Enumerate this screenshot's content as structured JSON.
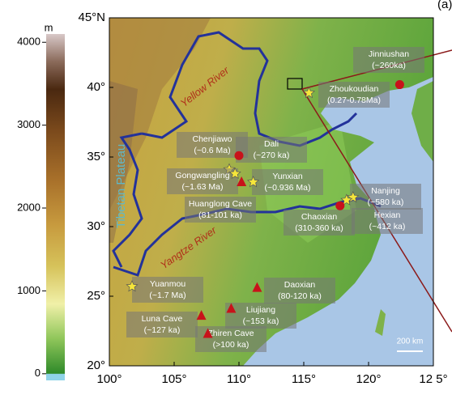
{
  "panel_label": "(a)",
  "colorbar": {
    "unit": "m",
    "lim": [
      -80,
      4100
    ],
    "ticks": [
      0,
      1000,
      2000,
      3000,
      4000
    ]
  },
  "map": {
    "xlim": [
      100,
      125
    ],
    "ylim": [
      20,
      45
    ],
    "xticks": [
      {
        "value": 100,
        "label": "100°"
      },
      {
        "value": 105,
        "label": "105°"
      },
      {
        "value": 110,
        "label": "110°"
      },
      {
        "value": 115,
        "label": "115°"
      },
      {
        "value": 120,
        "label": "120°"
      },
      {
        "value": 125,
        "label": "12 5°"
      }
    ],
    "yticks": [
      {
        "value": 20,
        "label": "20°"
      },
      {
        "value": 25,
        "label": "25°"
      },
      {
        "value": 30,
        "label": "30°"
      },
      {
        "value": 35,
        "label": "35°"
      },
      {
        "value": 40,
        "label": "40°"
      },
      {
        "value": 45,
        "label": "45°N"
      }
    ],
    "region_labels": {
      "yellow_river": "Yellow River",
      "yangtze_river": "Yangtze River",
      "plateau": "Tibetan Plateau"
    },
    "scale_bar": "200 km",
    "sites": [
      {
        "name": "Jinniushan",
        "age": "(~260ka)",
        "marker": "dot",
        "lon": 122.4,
        "lat": 40.2
      },
      {
        "name": "Zhoukoudian",
        "age": "(0.27-0.78Ma)",
        "marker": "star",
        "lon": 115.4,
        "lat": 39.6
      },
      {
        "name": "Chenjiawo",
        "age": "(~0.6 Ma)",
        "marker": "star",
        "lon": 109.25,
        "lat": 34.1
      },
      {
        "name": "Gongwangling",
        "age": "(~1.63 Ma)",
        "marker": "star",
        "lon": 109.7,
        "lat": 33.8
      },
      {
        "name": "Dali",
        "age": "(~270 ka)",
        "marker": "dot",
        "lon": 110.0,
        "lat": 35.1
      },
      {
        "name": "Yunxian",
        "age": "(~0.936 Ma)",
        "marker": "star",
        "lon": 111.1,
        "lat": 33.2
      },
      {
        "name": "Huanglong Cave",
        "age": "(81-101 ka)",
        "marker": "triangle",
        "lon": 110.2,
        "lat": 33.2
      },
      {
        "name": "Nanjing",
        "age": "(~580 ka)",
        "marker": "star",
        "lon": 118.8,
        "lat": 32.1
      },
      {
        "name": "Hexian",
        "age": "(~412 ka)",
        "marker": "star",
        "lon": 118.3,
        "lat": 31.9
      },
      {
        "name": "Chaoxian",
        "age": "(310-360 ka)",
        "marker": "dot",
        "lon": 117.8,
        "lat": 31.5
      },
      {
        "name": "Yuanmou",
        "age": "(~1.7 Ma)",
        "marker": "star",
        "lon": 101.75,
        "lat": 25.7
      },
      {
        "name": "Daoxian",
        "age": "(80-120 ka)",
        "marker": "triangle",
        "lon": 111.4,
        "lat": 25.6
      },
      {
        "name": "Liujiang",
        "age": "(~153 ka)",
        "marker": "triangle",
        "lon": 109.4,
        "lat": 24.1
      },
      {
        "name": "Luna Cave",
        "age": "(~127 ka)",
        "marker": "triangle",
        "lon": 107.1,
        "lat": 23.6
      },
      {
        "name": "Zhiren Cave",
        "age": "(>100 ka)",
        "marker": "triangle",
        "lon": 107.6,
        "lat": 22.3
      }
    ]
  }
}
